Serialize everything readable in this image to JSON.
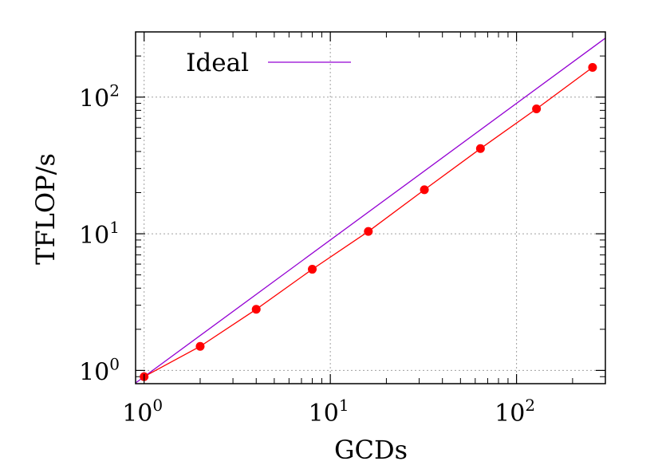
{
  "chart_data": {
    "type": "line",
    "xscale": "log",
    "yscale": "log",
    "xlim": [
      0.9,
      300
    ],
    "ylim": [
      0.8,
      300
    ],
    "grid": true,
    "legend_position": "top-left",
    "xlabel": "GCDs",
    "ylabel": "TFLOP/s",
    "xticks": [
      {
        "value": 1,
        "base": "10",
        "exp": "0"
      },
      {
        "value": 10,
        "base": "10",
        "exp": "1"
      },
      {
        "value": 100,
        "base": "10",
        "exp": "2"
      }
    ],
    "yticks": [
      {
        "value": 1,
        "base": "10",
        "exp": "0"
      },
      {
        "value": 10,
        "base": "10",
        "exp": "1"
      },
      {
        "value": 100,
        "base": "10",
        "exp": "2"
      }
    ],
    "series": [
      {
        "name": "Ideal",
        "color": "#9400d3",
        "marker": "none",
        "x": [
          0.9,
          300
        ],
        "y": [
          0.81,
          270
        ]
      },
      {
        "color": "#ff0000",
        "marker": "circle",
        "x": [
          1,
          2,
          4,
          8,
          16,
          32,
          64,
          128,
          256
        ],
        "y": [
          0.9,
          1.5,
          2.8,
          5.5,
          10.4,
          21,
          42,
          82,
          165
        ]
      }
    ]
  }
}
